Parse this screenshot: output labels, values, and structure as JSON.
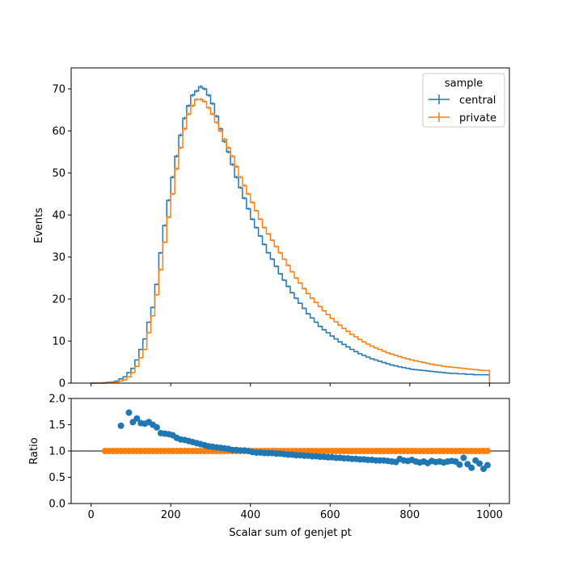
{
  "chart_data": [
    {
      "type": "line",
      "style": "step-histogram",
      "xlim": [
        -50,
        1050
      ],
      "ylim": [
        0,
        75
      ],
      "ylabel": "Events",
      "yticks": [
        0,
        10,
        20,
        30,
        40,
        50,
        60,
        70
      ],
      "legend": {
        "title": "sample",
        "placement": "top-right",
        "entries": [
          "central",
          "private"
        ]
      },
      "bin_edges_start": 0,
      "bin_width": 10,
      "series": [
        {
          "name": "central",
          "color": "#1f77b4",
          "values": [
            0,
            0,
            0,
            0.1,
            0.2,
            0.3,
            0.5,
            1,
            1.5,
            2.5,
            3.5,
            5.5,
            8,
            10.5,
            14.5,
            18,
            23.5,
            31,
            37.5,
            43.5,
            49,
            54,
            59,
            63,
            66,
            68.5,
            69.5,
            70.5,
            70,
            68.5,
            66.5,
            63.5,
            60.5,
            57.5,
            55,
            52,
            49,
            46.5,
            44,
            41.5,
            39,
            37,
            35,
            33,
            31,
            29.5,
            27.8,
            26,
            24.5,
            23,
            21.5,
            20.2,
            19,
            17.8,
            16.5,
            15.5,
            14.5,
            13.5,
            12.7,
            12,
            11.2,
            10.5,
            9.8,
            9.2,
            8.6,
            8,
            7.5,
            7,
            6.6,
            6.2,
            5.8,
            5.5,
            5.2,
            4.9,
            4.6,
            4.3,
            4.1,
            3.9,
            3.7,
            3.5,
            3.3,
            3.2,
            3.1,
            3,
            2.9,
            2.8,
            2.7,
            2.6,
            2.5,
            2.4,
            2.3,
            2.3,
            2.2,
            2.2,
            2.1,
            2.1,
            2,
            2,
            2,
            2
          ]
        },
        {
          "name": "private",
          "color": "#ff7f0e",
          "values": [
            0,
            0,
            0,
            0,
            0.1,
            0.2,
            0.3,
            0.5,
            0.8,
            1.5,
            2.5,
            4,
            6,
            8,
            12,
            16,
            21,
            27,
            33.5,
            39.5,
            45,
            51,
            56,
            60.5,
            64,
            66,
            67.5,
            67.5,
            67,
            65.5,
            64,
            62,
            60,
            58,
            56,
            54,
            51.5,
            49,
            47,
            45,
            43,
            41,
            39,
            37,
            35.5,
            34,
            32.5,
            31,
            29.5,
            28,
            26.5,
            25,
            23.8,
            22.5,
            21.3,
            20.2,
            19.2,
            18.2,
            17.2,
            16.3,
            15.4,
            14.6,
            13.8,
            13,
            12.3,
            11.6,
            11,
            10.4,
            9.8,
            9.3,
            8.8,
            8.4,
            8,
            7.6,
            7.2,
            6.9,
            6.6,
            6.3,
            6,
            5.8,
            5.5,
            5.3,
            5.1,
            4.9,
            4.7,
            4.5,
            4.3,
            4.2,
            4,
            3.9,
            3.8,
            3.7,
            3.6,
            3.5,
            3.4,
            3.3,
            3.2,
            3.1,
            3,
            3
          ]
        }
      ]
    },
    {
      "type": "scatter",
      "xlim": [
        -50,
        1050
      ],
      "ylim": [
        0,
        2
      ],
      "xlabel": "Scalar sum of genjet pt",
      "ylabel": "Ratio",
      "xticks": [
        0,
        200,
        400,
        600,
        800,
        1000
      ],
      "yticks": [
        0.0,
        0.5,
        1.0,
        1.5,
        2.0
      ],
      "reference_line": 1.0,
      "series": [
        {
          "name": "central",
          "color": "#1f77b4",
          "points": [
            [
              75,
              1.48
            ],
            [
              95,
              1.73
            ],
            [
              105,
              1.55
            ],
            [
              115,
              1.62
            ],
            [
              125,
              1.53
            ],
            [
              135,
              1.52
            ],
            [
              145,
              1.55
            ],
            [
              155,
              1.5
            ],
            [
              165,
              1.45
            ],
            [
              175,
              1.34
            ],
            [
              185,
              1.33
            ],
            [
              195,
              1.32
            ],
            [
              205,
              1.3
            ],
            [
              215,
              1.25
            ],
            [
              225,
              1.22
            ],
            [
              235,
              1.21
            ],
            [
              245,
              1.19
            ],
            [
              255,
              1.17
            ],
            [
              265,
              1.15
            ],
            [
              275,
              1.13
            ],
            [
              285,
              1.11
            ],
            [
              295,
              1.09
            ],
            [
              305,
              1.08
            ],
            [
              315,
              1.07
            ],
            [
              325,
              1.06
            ],
            [
              335,
              1.05
            ],
            [
              345,
              1.04
            ],
            [
              355,
              1.02
            ],
            [
              365,
              1.02
            ],
            [
              375,
              1.01
            ],
            [
              385,
              1.01
            ],
            [
              395,
              1.0
            ],
            [
              405,
              0.98
            ],
            [
              415,
              0.97
            ],
            [
              425,
              0.97
            ],
            [
              435,
              0.96
            ],
            [
              445,
              0.96
            ],
            [
              455,
              0.96
            ],
            [
              465,
              0.95
            ],
            [
              475,
              0.95
            ],
            [
              485,
              0.94
            ],
            [
              495,
              0.93
            ],
            [
              505,
              0.93
            ],
            [
              515,
              0.92
            ],
            [
              525,
              0.92
            ],
            [
              535,
              0.91
            ],
            [
              545,
              0.91
            ],
            [
              555,
              0.9
            ],
            [
              565,
              0.9
            ],
            [
              575,
              0.89
            ],
            [
              585,
              0.89
            ],
            [
              595,
              0.88
            ],
            [
              605,
              0.88
            ],
            [
              615,
              0.87
            ],
            [
              625,
              0.87
            ],
            [
              635,
              0.86
            ],
            [
              645,
              0.86
            ],
            [
              655,
              0.85
            ],
            [
              665,
              0.85
            ],
            [
              675,
              0.84
            ],
            [
              685,
              0.84
            ],
            [
              695,
              0.83
            ],
            [
              705,
              0.83
            ],
            [
              715,
              0.82
            ],
            [
              725,
              0.82
            ],
            [
              735,
              0.82
            ],
            [
              745,
              0.81
            ],
            [
              755,
              0.8
            ],
            [
              765,
              0.79
            ],
            [
              775,
              0.85
            ],
            [
              785,
              0.82
            ],
            [
              795,
              0.81
            ],
            [
              805,
              0.83
            ],
            [
              815,
              0.8
            ],
            [
              825,
              0.78
            ],
            [
              835,
              0.8
            ],
            [
              845,
              0.77
            ],
            [
              855,
              0.81
            ],
            [
              865,
              0.79
            ],
            [
              875,
              0.8
            ],
            [
              885,
              0.78
            ],
            [
              895,
              0.8
            ],
            [
              905,
              0.81
            ],
            [
              915,
              0.8
            ],
            [
              925,
              0.74
            ],
            [
              935,
              0.87
            ],
            [
              945,
              0.75
            ],
            [
              955,
              0.68
            ],
            [
              965,
              0.82
            ],
            [
              975,
              0.76
            ],
            [
              985,
              0.66
            ],
            [
              995,
              0.73
            ]
          ]
        },
        {
          "name": "private",
          "color": "#ff7f0e",
          "points": "ones"
        }
      ]
    }
  ]
}
